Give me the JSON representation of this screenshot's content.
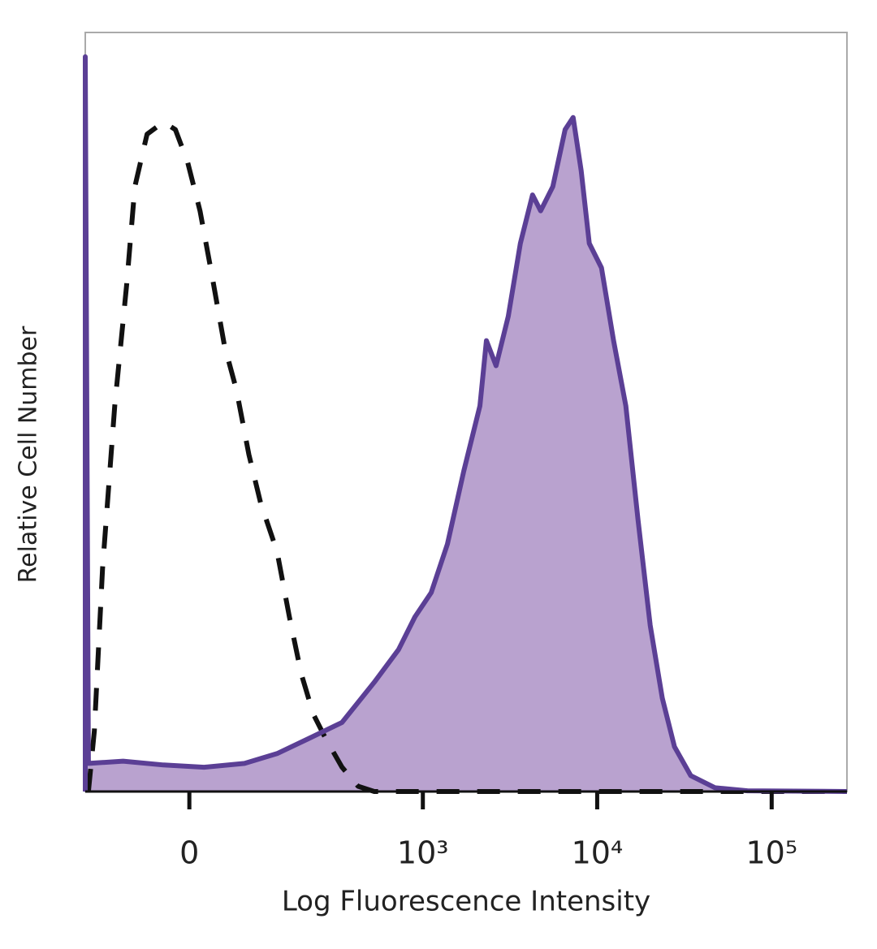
{
  "chart_data": {
    "type": "histogram-overlay",
    "xlabel": "Log Fluorescence Intensity",
    "ylabel": "Relative Cell Number",
    "xscale": "arcsinh",
    "xlim": [
      -170,
      270000
    ],
    "ylim": [
      0,
      100
    ],
    "xticks": [
      0,
      {
        "value": 1000,
        "label": "10³"
      },
      {
        "value": 10000,
        "label": "10⁴"
      },
      {
        "value": 100000,
        "label": "10⁵"
      }
    ],
    "series": [
      {
        "color": "#111111",
        "style": "dashed",
        "filled": false,
        "x": [
          -162,
          -148,
          -130,
          -106,
          -85,
          -72,
          -54,
          -32,
          -17,
          -2,
          13,
          28,
          44,
          61,
          80,
          100,
          132,
          160,
          191,
          227,
          270,
          339,
          421,
          524,
          270000
        ],
        "values": [
          0,
          8.0,
          29.4,
          50.8,
          66.8,
          79.7,
          86.6,
          88.2,
          87.2,
          82.9,
          76.5,
          67.9,
          58.8,
          52.9,
          44.4,
          38.0,
          31.6,
          23.0,
          15.5,
          10.2,
          7.0,
          3.2,
          0.7,
          0,
          0
        ]
      },
      {
        "color": "#5b3f95",
        "fill": "#b9a2cf",
        "style": "solid",
        "filled": true,
        "x": [
          -170,
          -170,
          -162,
          -91,
          -32,
          18,
          73,
          132,
          214,
          339,
          524,
          724,
          900,
          1117,
          1385,
          1718,
          2127,
          2317,
          2632,
          3091,
          3628,
          4258,
          4744,
          5572,
          6545,
          7280,
          8099,
          9011,
          10580,
          12420,
          14590,
          17130,
          20120,
          23620,
          27740,
          34350,
          47300,
          72600,
          270000
        ],
        "values": [
          0,
          96.8,
          3.7,
          4.0,
          3.5,
          3.2,
          3.7,
          5.0,
          7.0,
          9.1,
          14.4,
          18.7,
          23.0,
          26.2,
          32.6,
          42.2,
          50.8,
          59.4,
          56.1,
          62.6,
          72.2,
          78.6,
          76.5,
          79.7,
          87.2,
          88.8,
          81.8,
          72.2,
          69.0,
          59.4,
          50.8,
          35.8,
          21.9,
          12.3,
          5.9,
          2.1,
          0.5,
          0.1,
          0
        ]
      }
    ]
  }
}
